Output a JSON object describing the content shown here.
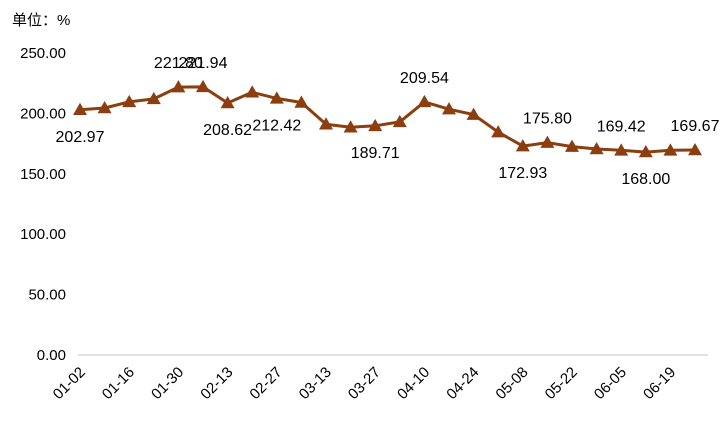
{
  "unit_label": "单位：%",
  "chart_data": {
    "type": "line",
    "title": "",
    "xlabel": "",
    "ylabel": "",
    "ylim": [
      0,
      250
    ],
    "yticks": [
      "0.00",
      "50.00",
      "100.00",
      "150.00",
      "200.00",
      "250.00"
    ],
    "xtick_labels": [
      "01-02",
      "01-16",
      "01-30",
      "02-13",
      "02-27",
      "03-13",
      "03-27",
      "04-10",
      "04-24",
      "05-08",
      "05-22",
      "06-05",
      "06-19"
    ],
    "colors": {
      "line": "#8B3E0F",
      "axis": "#d9d9d9"
    },
    "marker": "triangle",
    "grid": false,
    "x": [
      "01-02",
      "01-09",
      "01-16",
      "01-23",
      "01-30",
      "02-06",
      "02-13",
      "02-20",
      "02-27",
      "03-06",
      "03-13",
      "03-20",
      "03-27",
      "04-03",
      "04-10",
      "04-17",
      "04-24",
      "05-01",
      "05-08",
      "05-15",
      "05-22",
      "05-29",
      "06-05",
      "06-12",
      "06-19",
      "06-26"
    ],
    "values": [
      202.97,
      204.5,
      209.5,
      212.0,
      221.8,
      221.94,
      208.62,
      217.5,
      212.42,
      209.0,
      191.0,
      188.5,
      189.71,
      193.0,
      209.54,
      203.5,
      199.0,
      184.5,
      172.93,
      175.8,
      172.5,
      170.5,
      169.42,
      168.0,
      169.42,
      169.67
    ],
    "data_labels": [
      {
        "index": 0,
        "text": "202.97",
        "pos": "below"
      },
      {
        "index": 4,
        "text": "221.80",
        "pos": "above"
      },
      {
        "index": 5,
        "text": "221.94",
        "pos": "above"
      },
      {
        "index": 6,
        "text": "208.62",
        "pos": "below"
      },
      {
        "index": 8,
        "text": "212.42",
        "pos": "below"
      },
      {
        "index": 12,
        "text": "189.71",
        "pos": "below"
      },
      {
        "index": 14,
        "text": "209.54",
        "pos": "above"
      },
      {
        "index": 18,
        "text": "172.93",
        "pos": "below"
      },
      {
        "index": 19,
        "text": "175.80",
        "pos": "above"
      },
      {
        "index": 22,
        "text": "169.42",
        "pos": "above"
      },
      {
        "index": 23,
        "text": "168.00",
        "pos": "below"
      },
      {
        "index": 25,
        "text": "169.67",
        "pos": "above"
      }
    ]
  }
}
